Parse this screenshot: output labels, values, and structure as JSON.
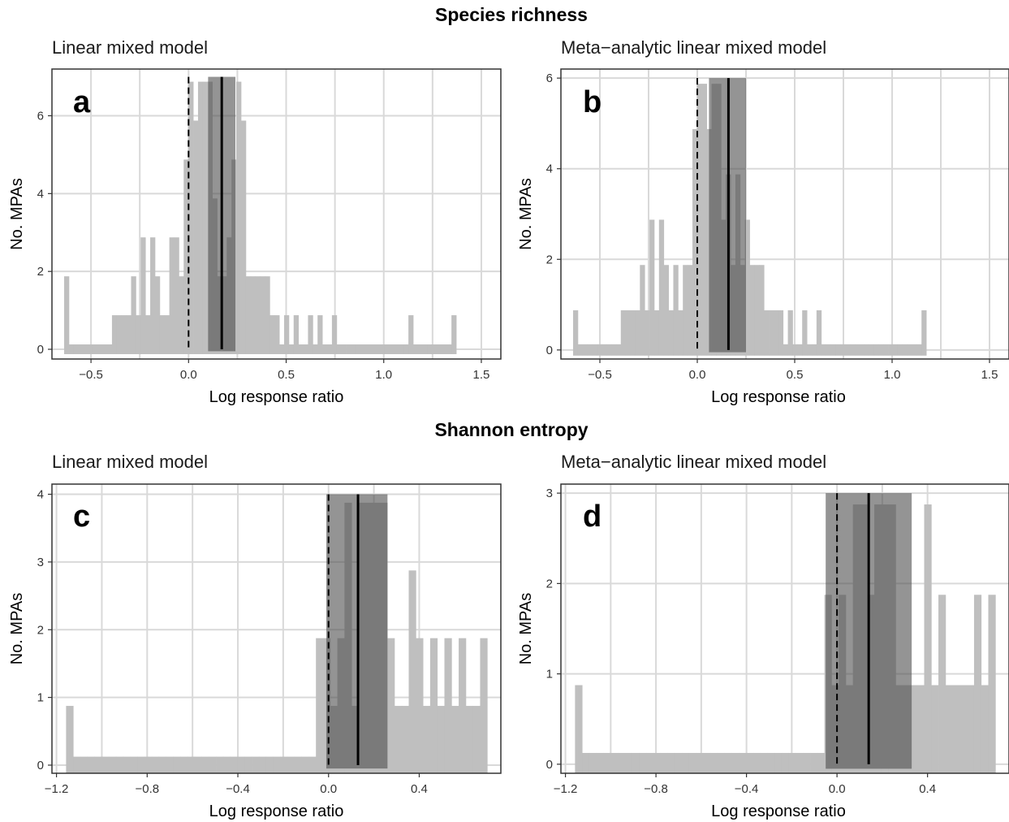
{
  "sections": {
    "top": "Species richness",
    "bottom": "Shannon entropy"
  },
  "colors": {
    "bars": "#bfbfbf",
    "ci_band": "#4d4d4d",
    "estimate": "#000000",
    "grid": "#d9d9d9"
  },
  "chart_data": [
    {
      "type": "bar",
      "panel": "a",
      "title": "Linear mixed model",
      "xlabel": "Log response ratio",
      "ylabel": "No. MPAs",
      "xlim": [
        -0.7,
        1.6
      ],
      "ylim": [
        -0.25,
        7.2
      ],
      "xticks": [
        -0.5,
        0.0,
        0.5,
        1.0,
        1.5
      ],
      "xtick_labels": [
        "−0.5",
        "0.0",
        "0.5",
        "1.0",
        "1.5"
      ],
      "yticks": [
        0,
        2,
        4,
        6
      ],
      "ytick_labels": [
        "0",
        "2",
        "4",
        "6"
      ],
      "bin_width": 0.0245,
      "bins_start": -0.6376,
      "counts": [
        2,
        0,
        0,
        0,
        0,
        0,
        0,
        0,
        0,
        0,
        1,
        1,
        1,
        1,
        2,
        1,
        3,
        1,
        3,
        2,
        1,
        1,
        3,
        3,
        2,
        5,
        7,
        6,
        7,
        7,
        7,
        4,
        2,
        2,
        3,
        5,
        7,
        6,
        2,
        2,
        2,
        2,
        2,
        1,
        1,
        0,
        1,
        0,
        1,
        0,
        0,
        1,
        0,
        1,
        0,
        0,
        1,
        0,
        0,
        0,
        0,
        0,
        0,
        0,
        0,
        0,
        0,
        0,
        0,
        0,
        0,
        0,
        1,
        0,
        0,
        0,
        0,
        0,
        0,
        0,
        0,
        1
      ],
      "estimate": 0.17,
      "ci": [
        0.1,
        0.24
      ],
      "ci_height": 7,
      "zero_line": 0.0
    },
    {
      "type": "bar",
      "panel": "b",
      "title": "Meta−analytic linear mixed model",
      "xlabel": "Log response ratio",
      "ylabel": "No. MPAs",
      "xlim": [
        -0.7,
        1.6
      ],
      "ylim": [
        -0.2,
        6.2
      ],
      "xticks": [
        -0.5,
        0.0,
        0.5,
        1.0,
        1.5
      ],
      "xtick_labels": [
        "−0.5",
        "0.0",
        "0.5",
        "1.0",
        "1.5"
      ],
      "yticks": [
        0,
        2,
        4,
        6
      ],
      "ytick_labels": [
        "0",
        "2",
        "4",
        "6"
      ],
      "bin_width": 0.0245,
      "bins_start": -0.6376,
      "counts": [
        1,
        0,
        0,
        0,
        0,
        0,
        0,
        0,
        0,
        0,
        1,
        1,
        1,
        1,
        2,
        1,
        3,
        1,
        3,
        2,
        1,
        2,
        1,
        2,
        2,
        5,
        6,
        6,
        5,
        6,
        6,
        3,
        4,
        2,
        4,
        2,
        3,
        2,
        2,
        2,
        1,
        1,
        1,
        1,
        0,
        1,
        0,
        0,
        1,
        0,
        0,
        1,
        0,
        0,
        0,
        0,
        0,
        0,
        0,
        0,
        0,
        0,
        0,
        0,
        0,
        0,
        0,
        0,
        0,
        0,
        0,
        0,
        0,
        1
      ],
      "estimate": 0.16,
      "ci": [
        0.06,
        0.25
      ],
      "ci_height": 6,
      "zero_line": 0.0
    },
    {
      "type": "bar",
      "panel": "c",
      "title": "Linear mixed model",
      "xlabel": "Log response ratio",
      "ylabel": "No. MPAs",
      "xlim": [
        -1.22,
        0.76
      ],
      "ylim": [
        -0.12,
        4.15
      ],
      "xticks": [
        -1.2,
        -0.8,
        -0.4,
        0.0,
        0.4
      ],
      "xtick_labels": [
        "−1.2",
        "−0.8",
        "−0.4",
        "0.0",
        "0.4"
      ],
      "yticks": [
        0,
        1,
        2,
        3,
        4
      ],
      "ytick_labels": [
        "0",
        "1",
        "2",
        "3",
        "4"
      ],
      "bin_width": 0.0406,
      "bins_start": -1.1577,
      "counts": [
        1,
        0,
        0,
        0,
        0,
        0,
        0,
        0,
        0,
        0,
        0,
        0,
        0,
        0,
        0,
        0,
        0,
        0,
        0,
        0,
        0,
        0,
        0,
        0,
        0,
        0,
        0,
        0,
        0,
        0,
        0,
        0,
        0,
        0,
        0,
        0,
        0,
        0,
        0,
        0,
        0,
        0,
        1,
        0,
        1,
        0,
        1,
        0,
        1,
        0,
        4,
        0,
        4,
        0,
        4,
        0,
        4,
        0,
        3,
        0,
        4,
        0,
        2,
        0,
        0,
        0,
        0,
        0,
        0,
        0,
        0,
        0,
        0,
        0,
        0,
        0,
        0,
        0,
        0,
        0
      ],
      "bar_counts": [
        1,
        0,
        0,
        0,
        0,
        0,
        0,
        0,
        0,
        0,
        0,
        0,
        0,
        0,
        0,
        0,
        0,
        0,
        0,
        0,
        0,
        0,
        0,
        0,
        0,
        0,
        0,
        0,
        0,
        0,
        0,
        0,
        0,
        0,
        0,
        2,
        2,
        1,
        2,
        4,
        1,
        4,
        4,
        4,
        4,
        2,
        1,
        1,
        3,
        2,
        1,
        2,
        1,
        2,
        1,
        2,
        1,
        1,
        2
      ],
      "estimate": 0.13,
      "ci": [
        -0.01,
        0.26
      ],
      "ci_height": 4,
      "zero_line": 0.0
    },
    {
      "type": "bar",
      "panel": "d",
      "title": "Meta−analytic linear mixed model",
      "xlabel": "Log response ratio",
      "ylabel": "No. MPAs",
      "xlim": [
        -1.22,
        0.76
      ],
      "ylim": [
        -0.1,
        3.1
      ],
      "xticks": [
        -1.2,
        -0.8,
        -0.4,
        0.0,
        0.4
      ],
      "xtick_labels": [
        "−1.2",
        "−0.8",
        "−0.4",
        "0.0",
        "0.4"
      ],
      "yticks": [
        0,
        1,
        2,
        3
      ],
      "ytick_labels": [
        "0",
        "1",
        "2",
        "3"
      ],
      "bin_width": 0.0406,
      "bins_start": -1.1577,
      "bar_counts": [
        1,
        0,
        0,
        0,
        0,
        0,
        0,
        0,
        0,
        0,
        0,
        0,
        0,
        0,
        0,
        0,
        0,
        0,
        0,
        0,
        0,
        0,
        0,
        0,
        0,
        0,
        0,
        0,
        0,
        0,
        0,
        0,
        0,
        0,
        0,
        2,
        1,
        2,
        1,
        3,
        3,
        2,
        3,
        3,
        3,
        1,
        1,
        1,
        1,
        3,
        1,
        2,
        1,
        1,
        1,
        1,
        2,
        1,
        2
      ],
      "estimate": 0.14,
      "ci": [
        -0.05,
        0.33
      ],
      "ci_height": 3,
      "zero_line": 0.0
    }
  ]
}
